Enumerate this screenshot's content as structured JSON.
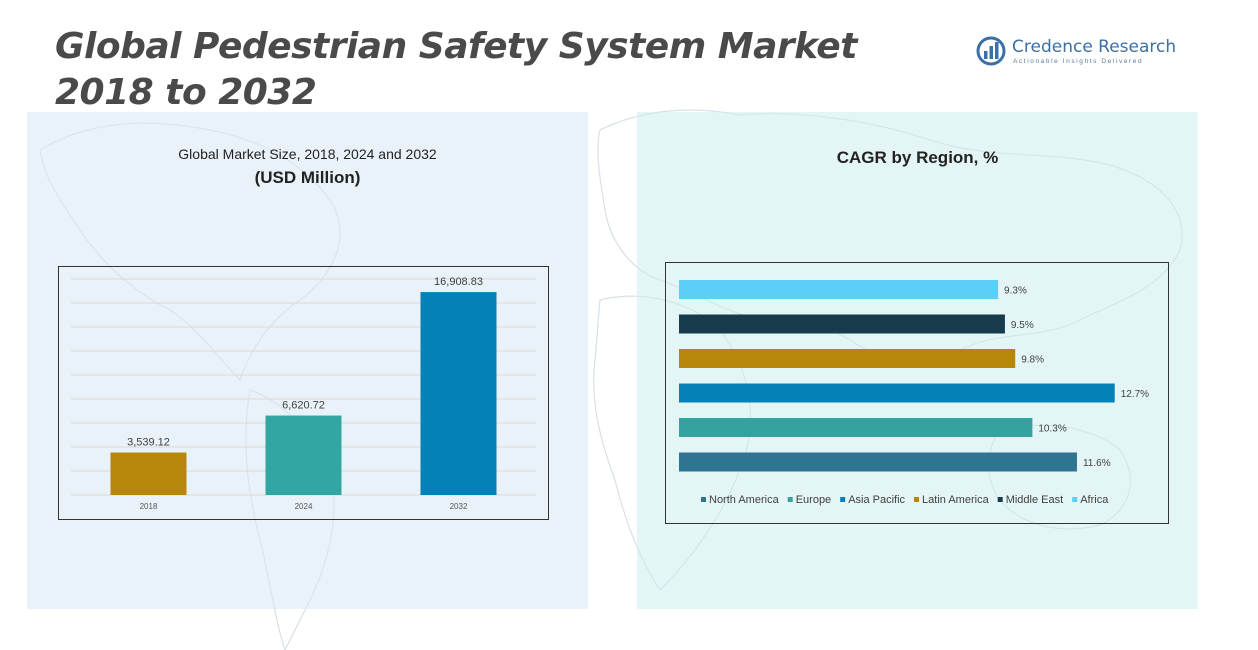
{
  "header": {
    "title_line1": "Global Pedestrian Safety System Market",
    "title_line2": "2018 to 2032"
  },
  "brand": {
    "name": "Credence Research",
    "tagline": "Actionable Insights Delivered",
    "logo_icon": "bar-chart-circle-icon",
    "color": "#3a6fa8"
  },
  "left_panel": {
    "heading": "Global Market Size, 2018, 2024 and 2032",
    "subheading": "(USD Million)"
  },
  "right_panel": {
    "heading": "CAGR by Region, %"
  },
  "chart_data": [
    {
      "type": "bar",
      "orientation": "vertical",
      "title": "Global Market Size, 2018, 2024 and 2032",
      "ylabel": "(USD Million)",
      "categories": [
        "2018",
        "2024",
        "2032"
      ],
      "values": [
        3539.12,
        6620.72,
        16908.83
      ],
      "value_labels": [
        "3,539.12",
        "6,620.72",
        "16,908.83"
      ],
      "colors": [
        "#b8860b",
        "#31a6a2",
        "#0481b6"
      ],
      "ylim": [
        0,
        18000
      ],
      "grid": true,
      "legend": "none"
    },
    {
      "type": "bar",
      "orientation": "horizontal",
      "title": "CAGR by Region, %",
      "series": [
        {
          "name": "North America",
          "value": 11.6,
          "label": "11.6%",
          "color": "#2f7592"
        },
        {
          "name": "Europe",
          "value": 10.3,
          "label": "10.3%",
          "color": "#34a39f"
        },
        {
          "name": "Asia Pacific",
          "value": 12.7,
          "label": "12.7%",
          "color": "#0481b6"
        },
        {
          "name": "Latin America",
          "value": 9.8,
          "label": "9.8%",
          "color": "#b8860b"
        },
        {
          "name": "Middle East",
          "value": 9.5,
          "label": "9.5%",
          "color": "#173a4c"
        },
        {
          "name": "Africa",
          "value": 9.3,
          "label": "9.3%",
          "color": "#5ccff8"
        }
      ],
      "xlim": [
        0,
        13
      ],
      "grid": false,
      "legend": "bottom"
    }
  ]
}
